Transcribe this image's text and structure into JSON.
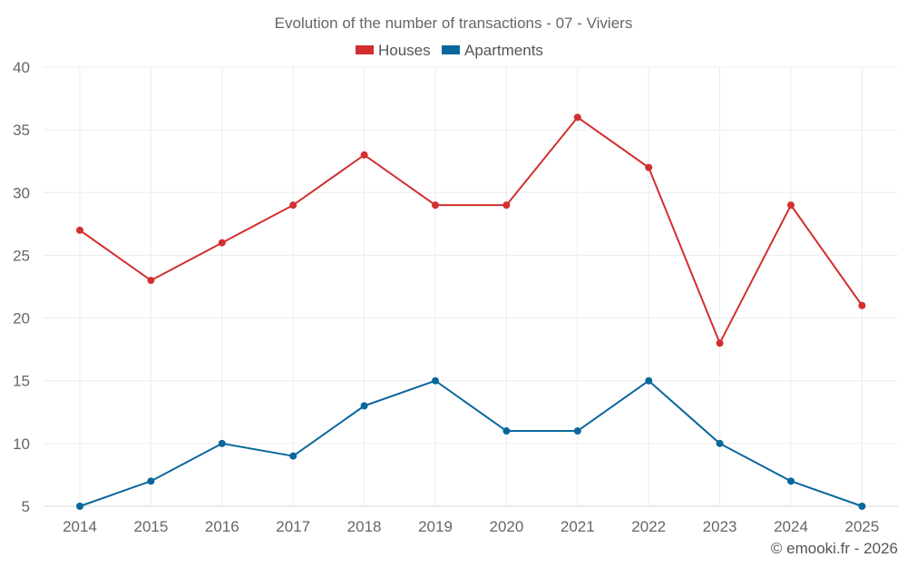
{
  "chart_data": {
    "type": "line",
    "title": "Evolution of the number of transactions - 07 - Viviers",
    "categories": [
      "2014",
      "2015",
      "2016",
      "2017",
      "2018",
      "2019",
      "2020",
      "2021",
      "2022",
      "2023",
      "2024",
      "2025"
    ],
    "series": [
      {
        "name": "Houses",
        "color": "#d32f2f",
        "values": [
          27,
          23,
          26,
          29,
          33,
          29,
          29,
          36,
          32,
          18,
          29,
          21
        ]
      },
      {
        "name": "Apartments",
        "color": "#0a679c",
        "values": [
          5,
          7,
          10,
          9,
          13,
          15,
          11,
          11,
          15,
          10,
          7,
          5
        ]
      }
    ],
    "ylim": [
      5,
      40
    ],
    "yticks": [
      5,
      10,
      15,
      20,
      25,
      30,
      35,
      40
    ],
    "xlabel": "",
    "ylabel": "",
    "grid": true,
    "legend": "top-center"
  },
  "credit": "© emooki.fr - 2026"
}
